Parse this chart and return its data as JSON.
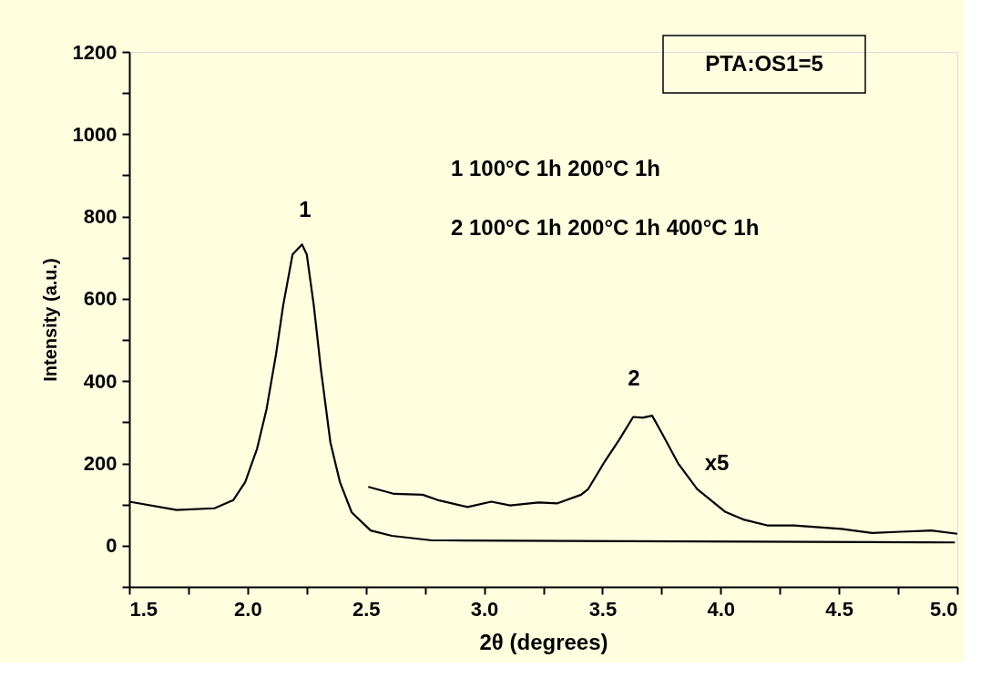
{
  "chart_data": {
    "type": "line",
    "xlabel": "2θ (degrees)",
    "ylabel": "Intensity (a.u.)",
    "series": [
      {
        "color": "#000000",
        "x": [
          1.5,
          1.7,
          1.86,
          1.94,
          1.99,
          2.04,
          2.08,
          2.12,
          2.15,
          2.19,
          2.23,
          2.25,
          2.28,
          2.31,
          2.35,
          2.39,
          2.44,
          2.52,
          2.61,
          2.78,
          2.84,
          3.61,
          4.99
        ],
        "values": [
          107,
          87,
          91,
          111,
          155,
          236,
          332,
          465,
          583,
          708,
          732,
          708,
          583,
          428,
          251,
          155,
          81,
          37,
          24,
          13,
          13,
          11,
          8
        ]
      },
      {
        "color": "#000000",
        "x": [
          2.51,
          2.62,
          2.74,
          2.81,
          2.93,
          3.03,
          3.11,
          3.23,
          3.31,
          3.41,
          3.44,
          3.51,
          3.57,
          3.63,
          3.67,
          3.71,
          3.75,
          3.82,
          3.9,
          4.02,
          4.1,
          4.2,
          4.31,
          4.51,
          4.64,
          4.76,
          4.89,
          5.0
        ],
        "values": [
          143,
          126,
          124,
          110,
          94,
          107,
          98,
          105,
          103,
          124,
          138,
          205,
          257,
          313,
          311,
          316,
          275,
          200,
          138,
          82,
          63,
          49,
          49,
          41,
          31,
          34,
          37,
          29
        ]
      }
    ],
    "xlim": [
      1.5,
      5.0
    ],
    "xticks": [
      1.5,
      {
        "value": 1.75,
        "label": null
      },
      {
        "value": 2,
        "label": "2.0"
      },
      {
        "value": 2.25,
        "label": null
      },
      2.5,
      {
        "value": 2.75,
        "label": null
      },
      {
        "value": 3,
        "label": "3.0"
      },
      {
        "value": 3.25,
        "label": null
      },
      3.5,
      {
        "value": 3.75,
        "label": null
      },
      {
        "value": 4,
        "label": "4.0"
      },
      {
        "value": 4.25,
        "label": null
      },
      4.5,
      {
        "value": 4.75,
        "label": null
      },
      {
        "value": 5,
        "label": "5.0"
      }
    ],
    "ylim": [
      -100,
      1200
    ],
    "yticks": [
      {
        "value": -100,
        "label": null
      },
      0,
      {
        "value": 100,
        "label": null
      },
      200,
      {
        "value": 300,
        "label": null
      },
      400,
      {
        "value": 500,
        "label": null
      },
      600,
      {
        "value": 700,
        "label": null
      },
      800,
      {
        "value": 900,
        "label": null
      },
      1000,
      {
        "value": 1100,
        "label": null
      },
      1200
    ],
    "grid": false,
    "marker": "none",
    "line_style": "solid",
    "annotations": [
      "PTA:OS1=5",
      "1 100°C 1h 200°C 1h",
      "2 100°C 1h 200°C 1h 400°C 1h",
      "1",
      "2",
      "x5"
    ]
  }
}
